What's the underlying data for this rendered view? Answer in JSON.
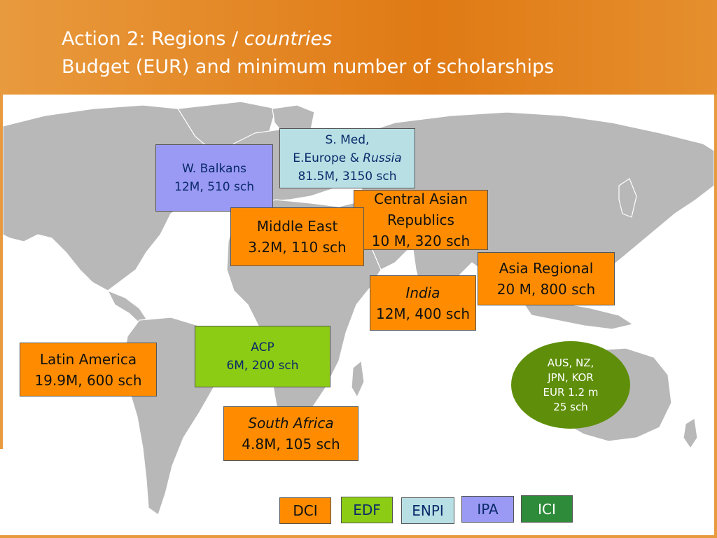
{
  "header": {
    "title_line1_prefix": "Action 2: Regions / ",
    "title_line1_italic": "countries",
    "title_line2": "Budget (EUR) and minimum number of scholarships"
  },
  "regions": {
    "w_balkans": {
      "line1": "W. Balkans",
      "line2": "12M, 510 sch",
      "instrument": "IPA"
    },
    "s_med": {
      "line1": "S. Med,",
      "line2_prefix": "E.Europe & ",
      "line2_italic": "Russia",
      "line3": "81.5M, 3150 sch",
      "instrument": "ENPI"
    },
    "central_asia": {
      "line1": "Central Asian",
      "line2": "Republics",
      "line3": "10 M, 320 sch",
      "instrument": "DCI"
    },
    "middle_east": {
      "line1": "Middle East",
      "line2": "3.2M, 110 sch",
      "instrument": "DCI"
    },
    "asia_regional": {
      "line1": "Asia Regional",
      "line2": "20 M, 800 sch",
      "instrument": "DCI"
    },
    "india": {
      "line1": "India",
      "line2": "12M, 400 sch",
      "instrument": "DCI"
    },
    "acp": {
      "line1": "ACP",
      "line2": "6M, 200 sch",
      "instrument": "EDF"
    },
    "latin_america": {
      "line1": "Latin America",
      "line2": "19.9M, 600 sch",
      "instrument": "DCI"
    },
    "south_africa": {
      "line1": "South Africa",
      "line2": "4.8M, 105 sch",
      "instrument": "DCI"
    },
    "industrialised": {
      "line1": "AUS, NZ,",
      "line2": "JPN, KOR",
      "line3": "EUR 1.2 m",
      "line4": "25 sch",
      "instrument": "ICI"
    }
  },
  "legend": [
    {
      "label": "DCI",
      "color": "#ff8c00"
    },
    {
      "label": "EDF",
      "color": "#8ccc14"
    },
    {
      "label": "ENPI",
      "color": "#b7dfe4"
    },
    {
      "label": "IPA",
      "color": "#9a9af5"
    },
    {
      "label": "ICI",
      "color": "#2e8b3a"
    }
  ],
  "colors": {
    "header": "#e07a14",
    "land": "#b8b8b8"
  }
}
